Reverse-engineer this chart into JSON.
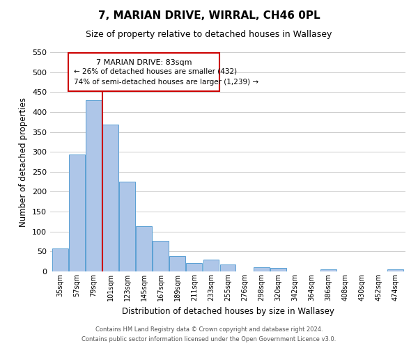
{
  "title": "7, MARIAN DRIVE, WIRRAL, CH46 0PL",
  "subtitle": "Size of property relative to detached houses in Wallasey",
  "xlabel": "Distribution of detached houses by size in Wallasey",
  "ylabel": "Number of detached properties",
  "bar_labels": [
    "35sqm",
    "57sqm",
    "79sqm",
    "101sqm",
    "123sqm",
    "145sqm",
    "167sqm",
    "189sqm",
    "211sqm",
    "233sqm",
    "255sqm",
    "276sqm",
    "298sqm",
    "320sqm",
    "342sqm",
    "364sqm",
    "386sqm",
    "408sqm",
    "430sqm",
    "452sqm",
    "474sqm"
  ],
  "bar_values": [
    57,
    293,
    430,
    368,
    226,
    113,
    76,
    38,
    21,
    29,
    17,
    0,
    11,
    9,
    0,
    0,
    6,
    0,
    0,
    0,
    5
  ],
  "bar_color": "#aec6e8",
  "bar_edge_color": "#5a9fd4",
  "ylim": [
    0,
    550
  ],
  "yticks": [
    0,
    50,
    100,
    150,
    200,
    250,
    300,
    350,
    400,
    450,
    500,
    550
  ],
  "property_line_x": 2.5,
  "annotation_label": "7 MARIAN DRIVE: 83sqm",
  "annotation_line1": "← 26% of detached houses are smaller (432)",
  "annotation_line2": "74% of semi-detached houses are larger (1,239) →",
  "footnote1": "Contains HM Land Registry data © Crown copyright and database right 2024.",
  "footnote2": "Contains public sector information licensed under the Open Government Licence v3.0.",
  "bg_color": "#ffffff",
  "grid_color": "#cccccc",
  "box_edge_color": "#cc0000",
  "property_line_color": "#cc0000"
}
